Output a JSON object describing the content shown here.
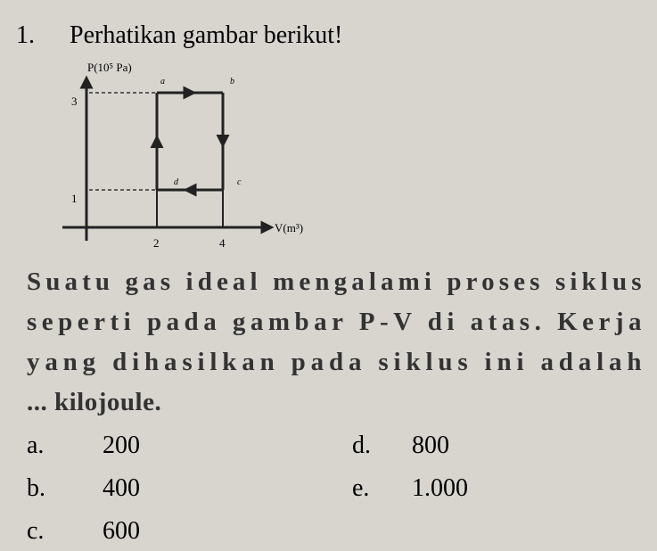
{
  "question": {
    "number": "1.",
    "prompt": "Perhatikan gambar berikut!"
  },
  "diagram": {
    "y_label": "P(10⁵ Pa)",
    "x_label": "V(m³)",
    "yticks": [
      3,
      1
    ],
    "xticks": [
      2,
      4
    ],
    "points": [
      "a",
      "b",
      "c",
      "d"
    ]
  },
  "body": {
    "lines": [
      "Suatu gas ideal mengalami proses siklus",
      "seperti pada gambar P-V di atas. Kerja",
      "yang dihasilkan pada siklus ini adalah",
      "... kilojoule."
    ]
  },
  "options": [
    {
      "letter": "a.",
      "text": "200"
    },
    {
      "letter": "b.",
      "text": "400"
    },
    {
      "letter": "c.",
      "text": "600"
    },
    {
      "letter": "d.",
      "text": "800"
    },
    {
      "letter": "e.",
      "text": "1.000"
    }
  ]
}
